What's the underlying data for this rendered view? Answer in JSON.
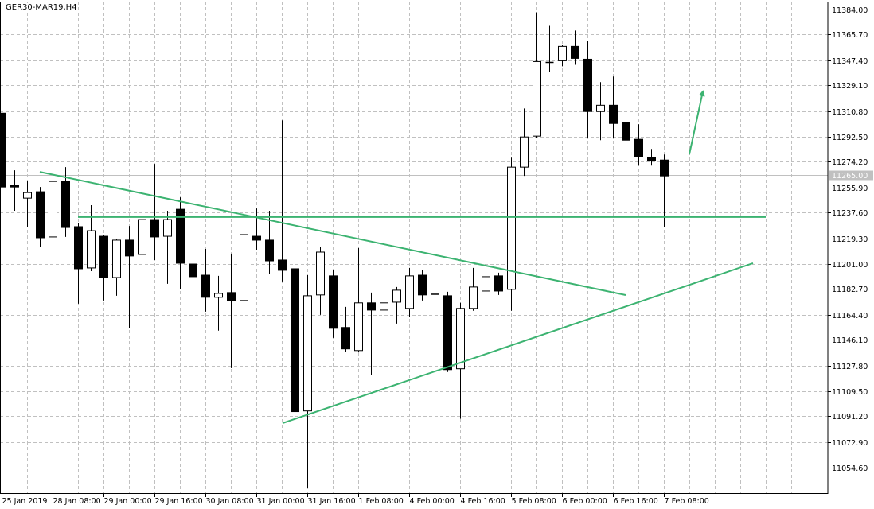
{
  "title": "GER30-MAR19,H4",
  "chart_data": {
    "type": "candlestick",
    "title": "GER30-MAR19,H4",
    "ylim": [
      11054.6,
      11384.0
    ],
    "y_ticks": [
      "11384.00",
      "11365.70",
      "11347.40",
      "11329.10",
      "11310.80",
      "11292.50",
      "11274.20",
      "11255.90",
      "11237.60",
      "11219.30",
      "11201.00",
      "11182.70",
      "11164.40",
      "11146.10",
      "11127.80",
      "11109.50",
      "11091.20",
      "11072.90",
      "11054.60"
    ],
    "current_price": "11265.00",
    "x_ticks": [
      {
        "candle": 0,
        "label": "25 Jan 2019"
      },
      {
        "candle": 4,
        "label": "28 Jan 08:00"
      },
      {
        "candle": 8,
        "label": "29 Jan 00:00"
      },
      {
        "candle": 12,
        "label": "29 Jan 16:00"
      },
      {
        "candle": 16,
        "label": "30 Jan 08:00"
      },
      {
        "candle": 20,
        "label": "31 Jan 00:00"
      },
      {
        "candle": 24,
        "label": "31 Jan 16:00"
      },
      {
        "candle": 28,
        "label": "1 Feb 08:00"
      },
      {
        "candle": 32,
        "label": "4 Feb 00:00"
      },
      {
        "candle": 36,
        "label": "4 Feb 16:00"
      },
      {
        "candle": 40,
        "label": "5 Feb 08:00"
      },
      {
        "candle": 44,
        "label": "6 Feb 00:00"
      },
      {
        "candle": 48,
        "label": "6 Feb 16:00"
      },
      {
        "candle": 52,
        "label": "7 Feb 08:00"
      }
    ],
    "grid": true,
    "colors": {
      "bull_fill": "#ffffff",
      "bear_fill": "#000000",
      "candle_outline": "#000000",
      "grid": "#c0c0c0",
      "trendline": "#3cb371",
      "price_line": "#c0c0c0"
    },
    "ohlc": [
      [
        11309.2,
        11309.2,
        11256.1,
        11256.1
      ],
      [
        11257.3,
        11268.1,
        11239.0,
        11256.1
      ],
      [
        11248.1,
        11260.7,
        11227.6,
        11252.1
      ],
      [
        11252.7,
        11256.1,
        11212.7,
        11219.6
      ],
      [
        11220.2,
        11267.0,
        11208.2,
        11260.1
      ],
      [
        11260.1,
        11270.4,
        11220.2,
        11227.0
      ],
      [
        11227.6,
        11229.9,
        11172.2,
        11197.3
      ],
      [
        11197.9,
        11243.0,
        11195.6,
        11224.7
      ],
      [
        11220.7,
        11221.9,
        11174.5,
        11191.0
      ],
      [
        11191.0,
        11219.0,
        11177.9,
        11217.9
      ],
      [
        11217.9,
        11228.1,
        11154.5,
        11206.5
      ],
      [
        11207.6,
        11245.8,
        11189.3,
        11232.7
      ],
      [
        11232.7,
        11272.7,
        11203.6,
        11220.2
      ],
      [
        11220.7,
        11239.0,
        11186.5,
        11232.7
      ],
      [
        11240.1,
        11248.7,
        11182.5,
        11201.3
      ],
      [
        11200.7,
        11220.7,
        11190.5,
        11191.6
      ],
      [
        11192.7,
        11211.6,
        11166.5,
        11176.8
      ],
      [
        11176.8,
        11192.2,
        11152.8,
        11179.6
      ],
      [
        11180.2,
        11208.2,
        11125.9,
        11174.5
      ],
      [
        11174.5,
        11229.3,
        11159.1,
        11221.9
      ],
      [
        11220.7,
        11240.7,
        11211.0,
        11217.9
      ],
      [
        11217.9,
        11239.0,
        11193.3,
        11203.0
      ],
      [
        11203.6,
        11304.1,
        11188.2,
        11196.2
      ],
      [
        11197.3,
        11201.3,
        11082.6,
        11094.6
      ],
      [
        11095.1,
        11192.7,
        11039.7,
        11177.9
      ],
      [
        11178.5,
        11212.7,
        11164.2,
        11209.3
      ],
      [
        11192.2,
        11196.2,
        11147.6,
        11154.5
      ],
      [
        11155.1,
        11169.9,
        11137.4,
        11139.7
      ],
      [
        11138.5,
        11212.2,
        11137.4,
        11172.8
      ],
      [
        11172.8,
        11180.2,
        11120.8,
        11167.6
      ],
      [
        11167.6,
        11193.3,
        11106.0,
        11172.8
      ],
      [
        11173.3,
        11184.2,
        11157.9,
        11181.9
      ],
      [
        11168.8,
        11197.9,
        11162.5,
        11192.2
      ],
      [
        11192.7,
        11196.2,
        11174.5,
        11178.5
      ],
      [
        11179.0,
        11204.7,
        11120.2,
        11179.0
      ],
      [
        11177.9,
        11180.8,
        11123.1,
        11124.8
      ],
      [
        11125.4,
        11172.8,
        11089.4,
        11168.8
      ],
      [
        11168.8,
        11197.9,
        11167.1,
        11184.2
      ],
      [
        11181.3,
        11200.2,
        11172.2,
        11191.6
      ],
      [
        11192.2,
        11194.5,
        11178.5,
        11181.3
      ],
      [
        11182.5,
        11277.2,
        11167.1,
        11270.4
      ],
      [
        11270.4,
        11312.6,
        11264.1,
        11292.1
      ],
      [
        11292.7,
        11381.7,
        11291.5,
        11346.3
      ],
      [
        11345.7,
        11372.0,
        11338.9,
        11345.7
      ],
      [
        11346.9,
        11358.3,
        11342.9,
        11357.2
      ],
      [
        11357.2,
        11368.6,
        11344.0,
        11348.6
      ],
      [
        11348.0,
        11361.2,
        11290.9,
        11310.4
      ],
      [
        11310.4,
        11331.5,
        11289.8,
        11314.9
      ],
      [
        11314.9,
        11335.5,
        11290.9,
        11301.8
      ],
      [
        11302.4,
        11308.6,
        11289.2,
        11289.8
      ],
      [
        11290.4,
        11301.2,
        11271.5,
        11277.8
      ],
      [
        11277.2,
        11283.5,
        11271.5,
        11274.9
      ],
      [
        11275.5,
        11279.5,
        11227.0,
        11264.1
      ]
    ],
    "ohlc_fields": [
      "open",
      "high",
      "low",
      "close"
    ],
    "trendlines": [
      {
        "from": [
          3,
          11267.0
        ],
        "to": [
          49,
          11178.4
        ]
      },
      {
        "from": [
          6,
          11234.5
        ],
        "to": [
          60,
          11234.5
        ]
      },
      {
        "from": [
          22.06,
          11086.3
        ],
        "to": [
          59,
          11201.3
        ]
      },
      {
        "from": [
          54,
          11279.6
        ],
        "to": [
          55.06,
          11324.8
        ],
        "arrow": true
      }
    ]
  }
}
